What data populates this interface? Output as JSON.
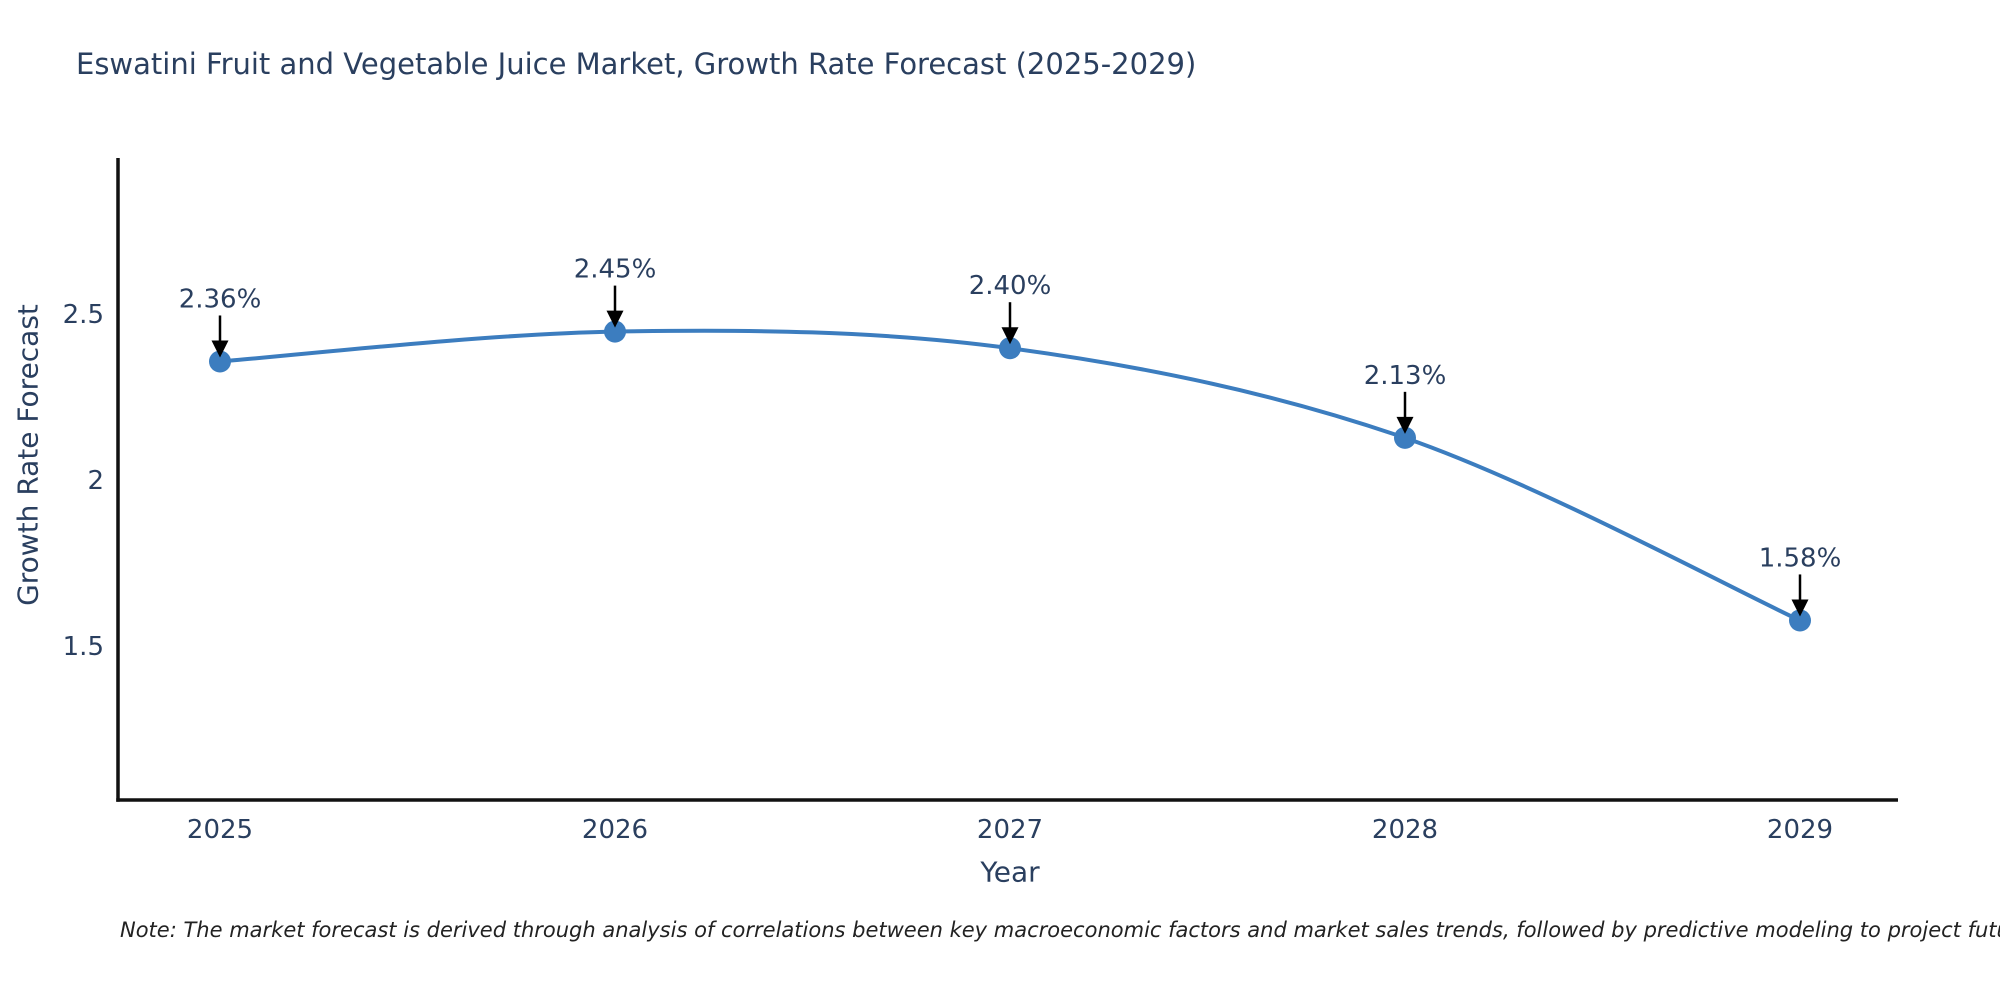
{
  "note": "Note: The market forecast is derived through analysis of correlations between key macroeconomic factors and market sales trends, followed by predictive modeling to project future sales",
  "chart_data": {
    "type": "line",
    "title": "Eswatini Fruit and Vegetable Juice Market, Growth Rate Forecast (2025-2029)",
    "xlabel": "Year",
    "ylabel": "Growth Rate Forecast",
    "x": [
      2025,
      2026,
      2027,
      2028,
      2029
    ],
    "values": [
      2.36,
      2.45,
      2.4,
      2.13,
      1.58
    ],
    "point_labels": [
      "2.36%",
      "2.45%",
      "2.40%",
      "2.13%",
      "1.58%"
    ],
    "yticks": [
      2.5,
      2,
      1.5
    ],
    "ylim": [
      1.05,
      2.97
    ],
    "xlim": [
      2024.74,
      2029.26
    ],
    "grid": false,
    "legend": "none",
    "line_color": "#3c7dbf",
    "marker_color": "#3c7dbf",
    "annotation_color": "#2a3f5f",
    "arrow_color": "#000000",
    "axis_color": "#111111",
    "text_color": "#2a3f5f"
  }
}
